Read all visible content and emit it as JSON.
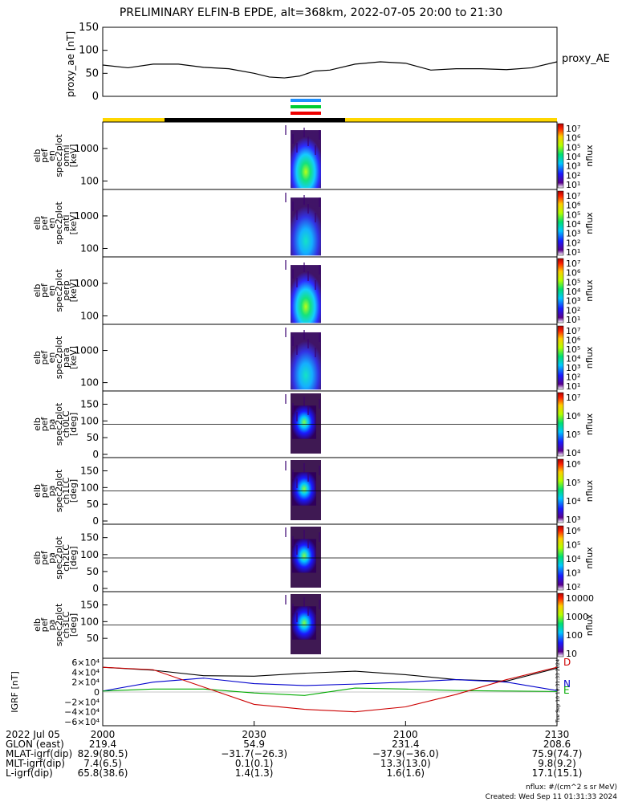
{
  "title": "PRELIMINARY ELFIN-B EPDE, alt=368km, 2022-07-05 20:00 to 21:30",
  "footer": {
    "units": "nflux: #/(cm^2 s sr MeV)",
    "created": "Created: Wed Sep 11 01:31:33 2024",
    "side_stamp": "Tue Sep 10 18:31:33 2024"
  },
  "colors": {
    "gse_x_black": "#000000",
    "series_blue": "#0000cc",
    "series_green": "#00aa00",
    "series_red": "#cc0000",
    "orbit_yellow": "#ffd700",
    "orbit_black": "#000000",
    "bar_blue": "#1e90ff",
    "bar_green": "#00cc33",
    "bar_red": "#ee0000"
  },
  "chart_data": [
    {
      "type": "line",
      "panel": "proxy_ae",
      "ylabel": "proxy_ae [nT]",
      "legend": "proxy_AE",
      "ylim": [
        0,
        150
      ],
      "yticks": [
        "150",
        "100",
        "50",
        "0"
      ],
      "x_minutes": [
        0,
        5,
        10,
        15,
        20,
        25,
        30,
        33,
        36,
        39,
        42,
        45,
        50,
        55,
        60,
        65,
        70,
        75,
        80,
        85,
        90
      ],
      "values": [
        68,
        62,
        70,
        70,
        63,
        60,
        50,
        42,
        40,
        44,
        55,
        57,
        70,
        75,
        72,
        57,
        60,
        60,
        58,
        62,
        75
      ]
    },
    {
      "type": "heatmap",
      "panel": "elb_pef_en_spec2plot_omni",
      "ylabel": "elb pef en spec2plot omni [keV]",
      "yticks": [
        "1000",
        "100"
      ],
      "zlabel": "nflux",
      "zticks": [
        "10^7",
        "10^6",
        "10^5",
        "10^4",
        "10^3",
        "10^2",
        "10^1"
      ]
    },
    {
      "type": "heatmap",
      "panel": "elb_pef_en_spec2plot_anti",
      "ylabel": "elb pef en spec2plot anti [keV]",
      "yticks": [
        "1000",
        "100"
      ],
      "zlabel": "nflux",
      "zticks": [
        "10^7",
        "10^6",
        "10^5",
        "10^4",
        "10^3",
        "10^2",
        "10^1"
      ]
    },
    {
      "type": "heatmap",
      "panel": "elb_pef_en_spec2plot_perp",
      "ylabel": "elb pef en spec2plot perp [keV]",
      "yticks": [
        "1000",
        "100"
      ],
      "zlabel": "nflux",
      "zticks": [
        "10^7",
        "10^6",
        "10^5",
        "10^4",
        "10^3",
        "10^2",
        "10^1"
      ]
    },
    {
      "type": "heatmap",
      "panel": "elb_pef_en_spec2plot_para",
      "ylabel": "elb pef en spec2plot para [keV]",
      "yticks": [
        "1000",
        "100"
      ],
      "zlabel": "nflux",
      "zticks": [
        "10^7",
        "10^6",
        "10^5",
        "10^4",
        "10^3",
        "10^2",
        "10^1"
      ]
    },
    {
      "type": "heatmap",
      "panel": "elb_pef_pa_spec2plot_ch0LC",
      "ylabel": "elb pef pa spec2plot ch0LC [deg]",
      "yticks": [
        "150",
        "100",
        "50",
        "0"
      ],
      "zlabel": "nflux",
      "zticks": [
        "10^7",
        "10^6",
        "10^5",
        "10^4"
      ]
    },
    {
      "type": "heatmap",
      "panel": "elb_pef_pa_spec2plot_ch1LC",
      "ylabel": "elb pef pa spec2plot ch1LC [deg]",
      "yticks": [
        "150",
        "100",
        "50",
        "0"
      ],
      "zlabel": "nflux",
      "zticks": [
        "10^6",
        "10^5",
        "10^4",
        "10^3"
      ]
    },
    {
      "type": "heatmap",
      "panel": "elb_pef_pa_spec2plot_ch2LC",
      "ylabel": "elb pef pa spec2plot ch2LC [deg]",
      "yticks": [
        "150",
        "100",
        "50",
        "0"
      ],
      "zlabel": "nflux",
      "zticks": [
        "10^6",
        "10^5",
        "10^4",
        "10^3",
        "10^2"
      ]
    },
    {
      "type": "heatmap",
      "panel": "elb_pef_pa_spec2plot_ch3LC",
      "ylabel": "elb pef pa spec2plot ch3LC [deg]",
      "yticks": [
        "150",
        "100",
        "50"
      ],
      "zlabel": "nflux",
      "zticks": [
        "10000",
        "1000",
        "100",
        "10"
      ]
    },
    {
      "type": "line",
      "panel": "IGRF",
      "ylabel": "IGRF [nT]",
      "ylim": [
        -60000,
        60000
      ],
      "yticks": [
        "6×10^4",
        "4×10^4",
        "2×10^4",
        "0",
        "−2×10^4",
        "−4×10^4",
        "−6×10^4"
      ],
      "legend": [
        "D",
        "N",
        "E"
      ],
      "x_minutes": [
        0,
        10,
        20,
        30,
        40,
        50,
        60,
        70,
        80,
        90
      ],
      "series": [
        {
          "key": "black",
          "values": [
            50000,
            44000,
            33000,
            32000,
            38000,
            42000,
            35000,
            25000,
            22000,
            48000
          ]
        },
        {
          "key": "blue",
          "values": [
            2000,
            20000,
            28000,
            17000,
            13000,
            16000,
            20000,
            25000,
            20000,
            3000
          ]
        },
        {
          "key": "green",
          "values": [
            2000,
            6000,
            6000,
            -2000,
            -7000,
            8000,
            6000,
            3000,
            2000,
            1000
          ]
        },
        {
          "key": "red",
          "values": [
            50000,
            45000,
            10000,
            -25000,
            -35000,
            -40000,
            -30000,
            -5000,
            25000,
            50000
          ]
        }
      ]
    }
  ],
  "xaxis": {
    "ticks": [
      "2000",
      "2030",
      "2100",
      "2130"
    ],
    "rows": [
      {
        "label": "2022 Jul 05",
        "values": [
          "2000",
          "2030",
          "2100",
          "2130"
        ]
      },
      {
        "label": "GLON (east)",
        "values": [
          "219.4",
          "54.9",
          "231.4",
          "208.6"
        ]
      },
      {
        "label": "MLAT-igrf(dip)",
        "values": [
          "82.9(80.5)",
          "−31.7(−26.3)",
          "−37.9(−36.0)",
          "75.9(74.7)"
        ]
      },
      {
        "label": "MLT-igrf(dip)",
        "values": [
          "7.4(6.5)",
          "0.1(0.1)",
          "13.3(13.0)",
          "9.8(9.2)"
        ]
      },
      {
        "label": "L-igrf(dip)",
        "values": [
          "65.8(38.6)",
          "1.4(1.3)",
          "1.6(1.6)",
          "17.1(15.1)"
        ]
      }
    ]
  }
}
